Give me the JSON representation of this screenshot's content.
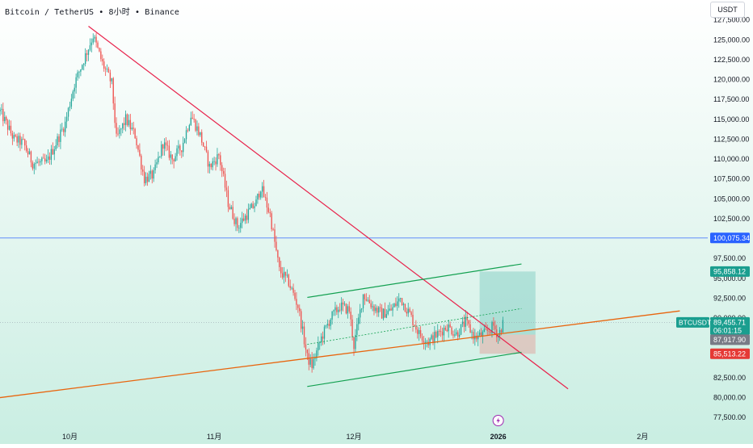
{
  "header": {
    "symbol_title": "Bitcoin / TetherUS  •  8小时  •  Binance",
    "currency_label": "USDT"
  },
  "colors": {
    "up": "#26a69a",
    "down": "#ef5350",
    "trend_red": "#e8224b",
    "channel_green": "#12a050",
    "support_orange": "#e8650e",
    "horizontal_blue": "#2962ff",
    "target_box": "#26a69a",
    "stop_box": "#ef5350"
  },
  "chart_data": {
    "type": "candlestick",
    "y_axis": {
      "range": [
        76200,
        130000
      ],
      "ticks": [
        127500,
        125000,
        122500,
        120000,
        117500,
        115000,
        112500,
        110000,
        107500,
        105000,
        102500,
        97500,
        95000,
        92500,
        90000,
        82500,
        80000,
        77500
      ],
      "tick_labels": [
        "127,500.00",
        "125,000.00",
        "122,500.00",
        "120,000.00",
        "117,500.00",
        "115,000.00",
        "112,500.00",
        "110,000.00",
        "107,500.00",
        "105,000.00",
        "102,500.00",
        "97,500.00",
        "95,000.00",
        "92,500.00",
        "90,000.00",
        "82,500.00",
        "80,000.00",
        "77,500.00"
      ]
    },
    "x_axis": {
      "range": [
        "2025-09-16",
        "2026-02-15"
      ],
      "labels": [
        {
          "date": "2025-10-01",
          "text": "10月"
        },
        {
          "date": "2025-11-01",
          "text": "11月"
        },
        {
          "date": "2025-12-01",
          "text": "12月"
        },
        {
          "date": "2026-01-01",
          "text": "2026"
        },
        {
          "date": "2026-02-01",
          "text": "2月"
        }
      ]
    },
    "price_path": [
      [
        "2025-09-16",
        116000
      ],
      [
        "2025-09-19",
        112500
      ],
      [
        "2025-09-21",
        112000
      ],
      [
        "2025-09-23",
        109500
      ],
      [
        "2025-09-26",
        109500
      ],
      [
        "2025-09-28",
        112000
      ],
      [
        "2025-09-30",
        114500
      ],
      [
        "2025-10-02",
        119500
      ],
      [
        "2025-10-04",
        122500
      ],
      [
        "2025-10-06",
        125500
      ],
      [
        "2025-10-08",
        122000
      ],
      [
        "2025-10-10",
        119500
      ],
      [
        "2025-10-11",
        112500
      ],
      [
        "2025-10-13",
        115000
      ],
      [
        "2025-10-15",
        113000
      ],
      [
        "2025-10-17",
        107500
      ],
      [
        "2025-10-19",
        108000
      ],
      [
        "2025-10-21",
        112000
      ],
      [
        "2025-10-23",
        110000
      ],
      [
        "2025-10-25",
        111500
      ],
      [
        "2025-10-27",
        115500
      ],
      [
        "2025-10-29",
        113000
      ],
      [
        "2025-10-31",
        109000
      ],
      [
        "2025-11-02",
        110500
      ],
      [
        "2025-11-04",
        104500
      ],
      [
        "2025-11-06",
        101500
      ],
      [
        "2025-11-08",
        103000
      ],
      [
        "2025-11-10",
        104500
      ],
      [
        "2025-11-11",
        106500
      ],
      [
        "2025-11-13",
        103000
      ],
      [
        "2025-11-15",
        96000
      ],
      [
        "2025-11-17",
        94500
      ],
      [
        "2025-11-19",
        91500
      ],
      [
        "2025-11-21",
        85000
      ],
      [
        "2025-11-22",
        84000
      ],
      [
        "2025-11-24",
        87500
      ],
      [
        "2025-11-26",
        90000
      ],
      [
        "2025-11-28",
        91500
      ],
      [
        "2025-11-30",
        91000
      ],
      [
        "2025-12-01",
        86500
      ],
      [
        "2025-12-03",
        93000
      ],
      [
        "2025-12-05",
        91500
      ],
      [
        "2025-12-07",
        90500
      ],
      [
        "2025-12-09",
        91000
      ],
      [
        "2025-12-11",
        92500
      ],
      [
        "2025-12-13",
        90500
      ],
      [
        "2025-12-15",
        88000
      ],
      [
        "2025-12-17",
        87000
      ],
      [
        "2025-12-19",
        88000
      ],
      [
        "2025-12-21",
        89000
      ],
      [
        "2025-12-23",
        88000
      ],
      [
        "2025-12-25",
        89500
      ],
      [
        "2025-12-27",
        87500
      ],
      [
        "2025-12-29",
        88000
      ],
      [
        "2025-12-31",
        89000
      ],
      [
        "2026-01-01",
        87800
      ],
      [
        "2026-01-02",
        89300
      ]
    ],
    "candle_spacing_hours": 8,
    "annotations": {
      "horizontal_level": {
        "price": 100075.34,
        "label": "100,075.34"
      },
      "target_level": {
        "price": 95858.12,
        "label": "95,858.12"
      },
      "current_price": {
        "symbol": "BTCUSDT",
        "price": 89455.71,
        "label": "89,455.71",
        "countdown": "06:01:15"
      },
      "entry_level": {
        "price": 87917.9,
        "label": "87,917.90"
      },
      "stop_level": {
        "price": 85513.22,
        "label": "85,513.22"
      },
      "descending_trendline": [
        [
          "2025-10-05",
          126700
        ],
        [
          "2026-01-16",
          81100
        ]
      ],
      "ascending_support": [
        [
          "2025-09-16",
          80000
        ],
        [
          "2026-02-09",
          90900
        ]
      ],
      "upper_channel": [
        [
          "2025-11-21",
          92600
        ],
        [
          "2026-01-06",
          96800
        ]
      ],
      "lower_channel": [
        [
          "2025-11-21",
          81400
        ],
        [
          "2026-01-06",
          85700
        ]
      ],
      "channel_midline": [
        [
          "2025-11-21",
          86700
        ],
        [
          "2026-01-06",
          91200
        ]
      ],
      "position_box": {
        "start": "2025-12-28",
        "end": "2026-01-09"
      }
    },
    "grid": false,
    "legend": "none"
  },
  "icons": {
    "event_marker": "lightning-icon"
  }
}
